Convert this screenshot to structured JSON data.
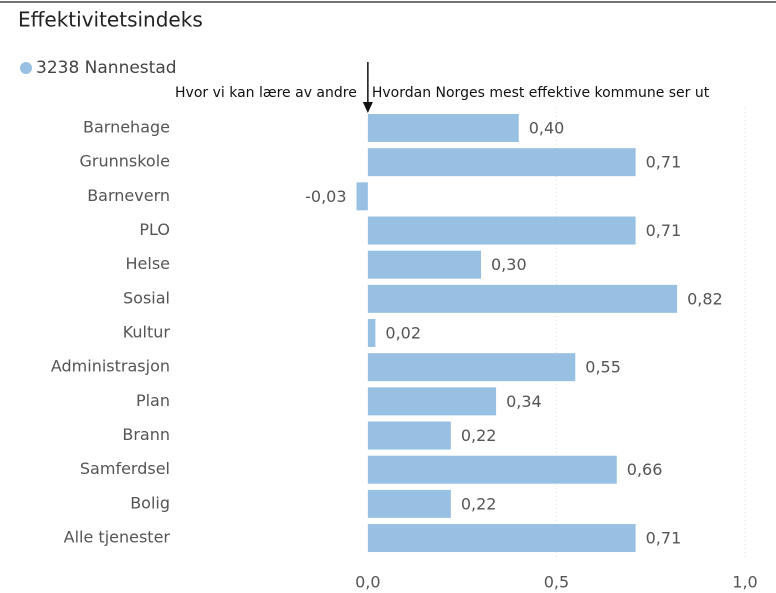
{
  "chart_data": {
    "type": "bar",
    "orientation": "horizontal",
    "title": "Effektivitetsindeks",
    "legend": "3238 Nannestad",
    "annotations": [
      "Hvor vi kan lære av andre",
      "Hvordan Norges mest effektive kommune ser ut"
    ],
    "categories": [
      "Barnehage",
      "Grunnskole",
      "Barnevern",
      "PLO",
      "Helse",
      "Sosial",
      "Kultur",
      "Administrasjon",
      "Plan",
      "Brann",
      "Samferdsel",
      "Bolig",
      "Alle tjenester"
    ],
    "values": [
      0.4,
      0.71,
      -0.03,
      0.71,
      0.3,
      0.82,
      0.02,
      0.55,
      0.34,
      0.22,
      0.66,
      0.22,
      0.71
    ],
    "value_labels": [
      "0,40",
      "0,71",
      "-0,03",
      "0,71",
      "0,30",
      "0,82",
      "0,02",
      "0,55",
      "0,34",
      "0,22",
      "0,66",
      "0,22",
      "0,71"
    ],
    "color": "#97c0e3",
    "xlim": [
      -0.4,
      1.0
    ],
    "xticks": [
      {
        "value": 0,
        "label": "0,0"
      },
      {
        "value": 0.5,
        "label": "0,5"
      },
      {
        "value": 1.0,
        "label": "1,0"
      }
    ],
    "grid": true
  }
}
